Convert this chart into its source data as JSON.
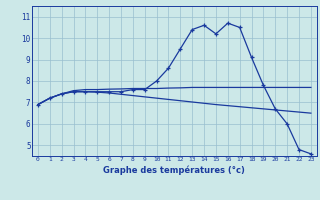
{
  "xlabel": "Graphe des températures (°c)",
  "hours": [
    0,
    1,
    2,
    3,
    4,
    5,
    6,
    7,
    8,
    9,
    10,
    11,
    12,
    13,
    14,
    15,
    16,
    17,
    18,
    19,
    20,
    21,
    22,
    23
  ],
  "line1": [
    6.9,
    7.2,
    7.4,
    7.5,
    7.5,
    7.5,
    7.5,
    7.5,
    7.6,
    7.6,
    8.0,
    8.6,
    9.5,
    10.4,
    10.6,
    10.2,
    10.7,
    10.5,
    9.1,
    7.8,
    6.7,
    6.0,
    4.8,
    4.6
  ],
  "line2": [
    6.9,
    7.2,
    7.4,
    7.55,
    7.6,
    7.6,
    7.62,
    7.63,
    7.65,
    7.65,
    7.65,
    7.67,
    7.68,
    7.7,
    7.7,
    7.7,
    7.7,
    7.7,
    7.7,
    7.7,
    7.7,
    7.7,
    7.7,
    7.7
  ],
  "line3": [
    6.9,
    7.2,
    7.4,
    7.5,
    7.5,
    7.48,
    7.44,
    7.38,
    7.32,
    7.26,
    7.2,
    7.14,
    7.08,
    7.02,
    6.96,
    6.9,
    6.85,
    6.8,
    6.75,
    6.7,
    6.65,
    6.6,
    6.55,
    6.5
  ],
  "line_color": "#1a3a9e",
  "bg_color": "#cce8e8",
  "grid_color": "#99bfcf",
  "ylim": [
    4.5,
    11.5
  ],
  "yticks": [
    5,
    6,
    7,
    8,
    9,
    10,
    11
  ],
  "marker": "+"
}
